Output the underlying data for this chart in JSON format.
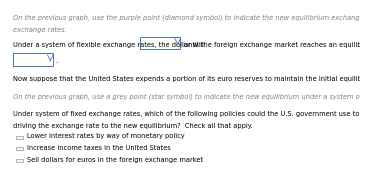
{
  "bg_color": "#ffffff",
  "line1": "On the previous graph, use the purple point (diamond symbol) to indicate the new equilibrium exchange rate and quantity under a system of flexible",
  "line2": "exchange rates.",
  "line3a": "Under a system of flexible exchange rates, the dollar will",
  "line3b": "until the foreign exchange market reaches an equilibrium exchange rate of",
  "line4": ".",
  "line5": "Now suppose that the United States expends a portion of its euro reserves to maintain the initial equilibrium exchange rate of $2 per euro.",
  "line6": "On the previous graph, use a grey point (star symbol) to indicate the new equilibrium under a system of fixed exchange rates.",
  "line7a": "Under system of fixed exchange rates, which of the following policies could the U.S. government use to prevent the change in demand for euros from",
  "line7b": "driving the exchange rate to the new equilibrium?  Check all that apply.",
  "cb1": "Lower interest rates by way of monetary policy",
  "cb2": "Increase income taxes in the United States",
  "cb3": "Sell dollars for euros in the foreign exchange market",
  "italic_color": "#7f7f7f",
  "normal_color": "#000000",
  "dropdown_border": "#4472c4",
  "underline_color": "#4472c4",
  "checkbox_color": "#cccccc",
  "fontsize": 4.8,
  "italic_style": "italic",
  "normal_style": "normal"
}
